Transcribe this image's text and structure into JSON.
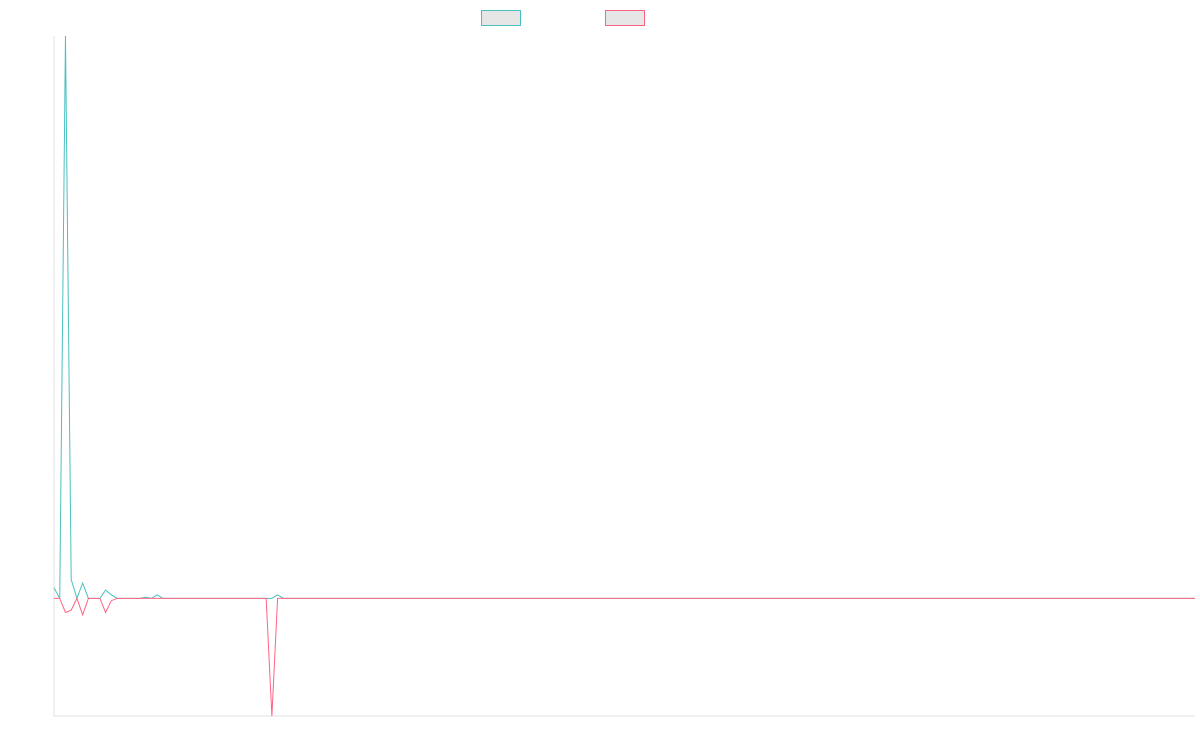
{
  "chart_data": {
    "type": "line",
    "title": "",
    "xlabel": "",
    "ylabel": "",
    "grid": false,
    "legend_placement": "top-center",
    "x_count": 200,
    "ylim": [
      -1.0,
      4.78
    ],
    "series": [
      {
        "color": "#4bc0c0",
        "fill": "#e6e6e6",
        "points": [
          [
            0,
            0.09
          ],
          [
            1,
            0.0
          ],
          [
            2,
            4.78
          ],
          [
            3,
            0.16
          ],
          [
            4,
            0.0
          ],
          [
            5,
            0.13
          ],
          [
            6,
            0.0
          ],
          [
            7,
            0.0
          ],
          [
            8,
            0.0
          ],
          [
            9,
            0.07
          ],
          [
            10,
            0.03
          ],
          [
            11,
            0.0
          ],
          [
            12,
            0.0
          ],
          [
            13,
            0.0
          ],
          [
            14,
            0.0
          ],
          [
            15,
            0.0
          ],
          [
            16,
            0.01
          ],
          [
            17,
            0.0
          ],
          [
            18,
            0.03
          ],
          [
            19,
            0.0
          ],
          [
            20,
            0.0
          ],
          [
            37,
            0.0
          ],
          [
            38,
            0.0
          ],
          [
            39,
            0.03
          ],
          [
            40,
            0.0
          ],
          [
            199,
            0.0
          ]
        ]
      },
      {
        "color": "#ff6384",
        "fill": "#e6e6e6",
        "points": [
          [
            0,
            0.0
          ],
          [
            1,
            0.0
          ],
          [
            2,
            -0.12
          ],
          [
            3,
            -0.1
          ],
          [
            4,
            0.0
          ],
          [
            5,
            -0.14
          ],
          [
            6,
            0.0
          ],
          [
            7,
            0.0
          ],
          [
            8,
            0.0
          ],
          [
            9,
            -0.12
          ],
          [
            10,
            -0.02
          ],
          [
            11,
            0.0
          ],
          [
            12,
            0.0
          ],
          [
            36,
            0.0
          ],
          [
            37,
            0.0
          ],
          [
            38,
            -1.0
          ],
          [
            39,
            0.0
          ],
          [
            40,
            0.0
          ],
          [
            199,
            0.0
          ]
        ]
      }
    ]
  }
}
